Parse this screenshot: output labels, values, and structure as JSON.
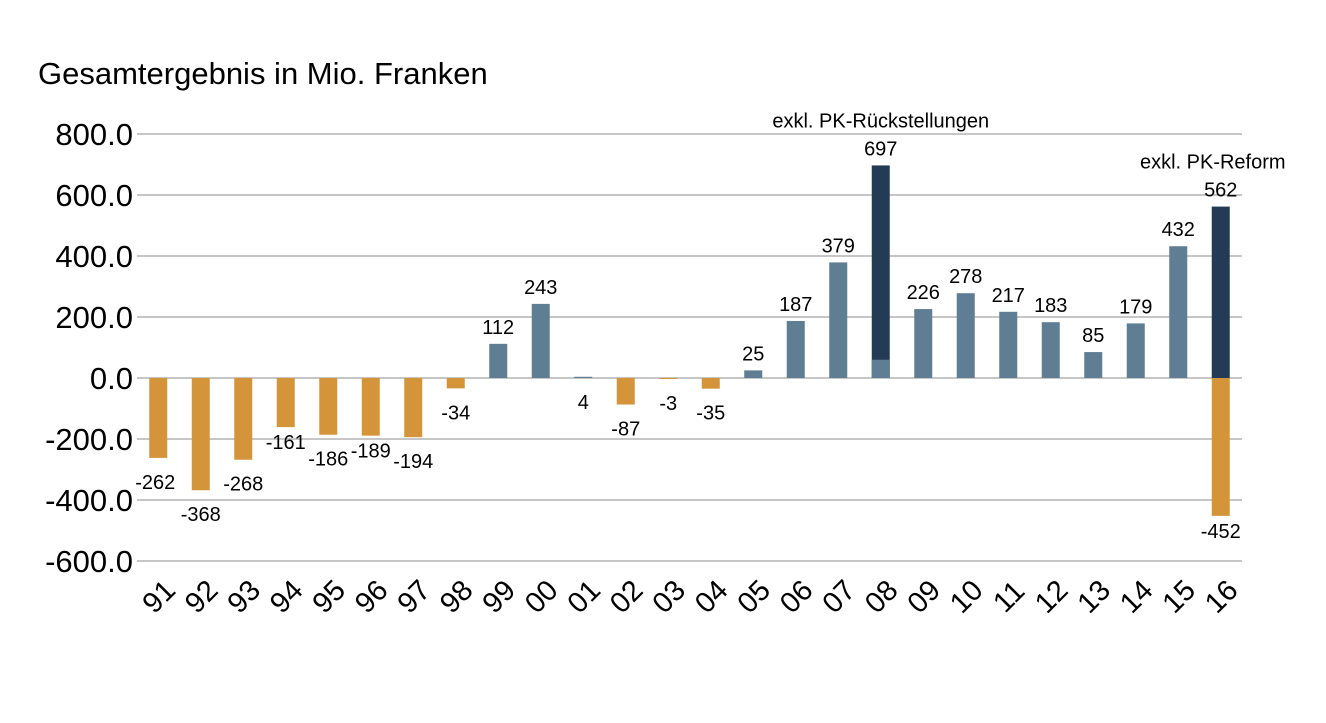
{
  "chart_data": {
    "type": "bar",
    "title": "Gesamtergebnis in Mio. Franken",
    "xlabel": "",
    "ylabel": "",
    "ylim": [
      -600,
      800
    ],
    "yticks": [
      800,
      600,
      400,
      200,
      0,
      -200,
      -400,
      -600
    ],
    "ytick_labels": [
      "800.0",
      "600.0",
      "400.0",
      "200.0",
      "0.0",
      "-200.0",
      "-400.0",
      "-600.0"
    ],
    "grid": true,
    "legend": "none",
    "categories": [
      "91",
      "92",
      "93",
      "94",
      "95",
      "96",
      "97",
      "98",
      "99",
      "00",
      "01",
      "02",
      "03",
      "04",
      "05",
      "06",
      "07",
      "08",
      "09",
      "10",
      "11",
      "12",
      "13",
      "14",
      "15",
      "16"
    ],
    "values": [
      -262,
      -368,
      -268,
      -161,
      -186,
      -189,
      -194,
      -34,
      112,
      243,
      4,
      -87,
      -3,
      -35,
      25,
      187,
      379,
      697,
      226,
      278,
      217,
      183,
      85,
      179,
      432,
      562
    ],
    "value_labels": [
      "-262",
      "-368",
      "-268",
      "-161",
      "-186",
      "-189",
      "-194",
      "-34",
      "112",
      "243",
      "4",
      "-87",
      "-3",
      "-35",
      "25",
      "187",
      "379",
      "697",
      "226",
      "278",
      "217",
      "183",
      "85",
      "179",
      "432",
      "562"
    ],
    "extra_negative": {
      "category": "16",
      "value": -452,
      "label": "-452"
    },
    "overlay_base": {
      "category": "08",
      "value": 60
    },
    "annotations": [
      {
        "category": "08",
        "text": "exkl. PK-Rückstellungen"
      },
      {
        "category": "16",
        "text": "exkl. PK-Reform"
      }
    ],
    "colors": {
      "negative": "#D4943A",
      "positive": "#5F7D93",
      "highlight": "#243B55",
      "grid": "#8C8C8C"
    }
  }
}
